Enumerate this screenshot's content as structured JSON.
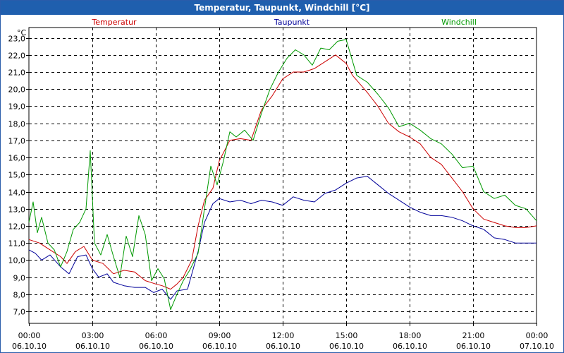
{
  "window": {
    "title": "Temperatur, Taupunkt, Windchill [°C]"
  },
  "chart_data": {
    "type": "line",
    "title": "Temperatur, Taupunkt, Windchill [°C]",
    "ylabel": "°C",
    "ylim": [
      6.3,
      23.6
    ],
    "xlim": [
      0,
      24
    ],
    "grid": true,
    "yticks": [
      "7,0",
      "8,0",
      "9,0",
      "10,0",
      "11,0",
      "12,0",
      "13,0",
      "14,0",
      "15,0",
      "16,0",
      "17,0",
      "18,0",
      "19,0",
      "20,0",
      "21,0",
      "22,0",
      "23,0"
    ],
    "xticks": [
      {
        "time": "00:00",
        "date": "06.10.10"
      },
      {
        "time": "03:00",
        "date": "06.10.10"
      },
      {
        "time": "06:00",
        "date": "06.10.10"
      },
      {
        "time": "09:00",
        "date": "06.10.10"
      },
      {
        "time": "12:00",
        "date": "06.10.10"
      },
      {
        "time": "15:00",
        "date": "06.10.10"
      },
      {
        "time": "18:00",
        "date": "06.10.10"
      },
      {
        "time": "21:00",
        "date": "06.10.10"
      },
      {
        "time": "00:00",
        "date": "07.10.10"
      }
    ],
    "series": [
      {
        "name": "Temperatur",
        "color": "#cc0000",
        "x": [
          0,
          0.5,
          1,
          1.5,
          1.8,
          2.2,
          2.6,
          3,
          3.5,
          4,
          4.5,
          5,
          5.5,
          6,
          6.3,
          6.7,
          7,
          7.3,
          7.7,
          8,
          8.3,
          8.7,
          9,
          9.5,
          10,
          10.5,
          11,
          11.5,
          12,
          12.5,
          13,
          13.5,
          14,
          14.5,
          15,
          15.3,
          16,
          16.5,
          17,
          17.5,
          18,
          18.5,
          19,
          19.5,
          20,
          20.5,
          21,
          21.5,
          22,
          22.5,
          23,
          23.5,
          24
        ],
        "values": [
          11.2,
          11.0,
          10.6,
          10.2,
          9.8,
          10.5,
          10.8,
          10.0,
          9.8,
          9.2,
          9.4,
          9.3,
          8.8,
          8.6,
          8.5,
          8.3,
          8.6,
          9.0,
          10.0,
          12.0,
          13.5,
          14.2,
          15.8,
          17.0,
          17.1,
          17.0,
          18.8,
          19.6,
          20.6,
          21.0,
          21.0,
          21.2,
          21.6,
          22.0,
          21.5,
          20.8,
          19.8,
          19.0,
          18.0,
          17.5,
          17.2,
          16.8,
          16.0,
          15.6,
          14.8,
          14.0,
          13.0,
          12.4,
          12.2,
          12.0,
          11.9,
          11.9,
          12.0
        ]
      },
      {
        "name": "Taupunkt",
        "color": "#000099",
        "x": [
          0,
          0.3,
          0.6,
          1,
          1.5,
          1.9,
          2.3,
          2.7,
          3,
          3.3,
          3.7,
          4,
          4.5,
          5,
          5.5,
          5.9,
          6.3,
          6.7,
          7,
          7.5,
          8,
          8.3,
          8.7,
          9,
          9.5,
          10,
          10.5,
          11,
          11.5,
          12,
          12.5,
          13,
          13.5,
          14,
          14.5,
          15,
          15.5,
          16,
          16.5,
          17,
          17.5,
          18,
          18.5,
          19,
          19.5,
          20,
          20.5,
          21,
          21.5,
          22,
          22.5,
          23,
          23.5,
          24
        ],
        "values": [
          10.6,
          10.4,
          10.0,
          10.3,
          9.6,
          9.2,
          10.2,
          10.3,
          9.5,
          9.0,
          9.2,
          8.7,
          8.5,
          8.4,
          8.4,
          8.1,
          8.3,
          7.7,
          8.2,
          8.3,
          10.5,
          12.2,
          13.3,
          13.6,
          13.4,
          13.5,
          13.3,
          13.5,
          13.4,
          13.2,
          13.7,
          13.5,
          13.4,
          13.9,
          14.1,
          14.5,
          14.8,
          14.9,
          14.4,
          13.9,
          13.5,
          13.1,
          12.8,
          12.6,
          12.6,
          12.5,
          12.3,
          12.0,
          11.8,
          11.3,
          11.2,
          11.0,
          11.0,
          11.0
        ]
      },
      {
        "name": "Windchill",
        "color": "#009900",
        "x": [
          0,
          0.2,
          0.4,
          0.6,
          0.9,
          1.2,
          1.5,
          1.8,
          2.1,
          2.4,
          2.7,
          2.9,
          3.1,
          3.4,
          3.7,
          4,
          4.3,
          4.6,
          4.9,
          5.2,
          5.5,
          5.8,
          6.1,
          6.4,
          6.7,
          7,
          7.3,
          7.6,
          8,
          8.3,
          8.6,
          8.9,
          9.2,
          9.5,
          9.8,
          10.2,
          10.6,
          11,
          11.4,
          11.8,
          12.2,
          12.6,
          13,
          13.4,
          13.8,
          14.2,
          14.6,
          15,
          15.5,
          16,
          16.5,
          17,
          17.5,
          18,
          18.5,
          19,
          19.5,
          20,
          20.5,
          21,
          21.5,
          22,
          22.5,
          23,
          23.5,
          24
        ],
        "values": [
          12.2,
          13.4,
          11.6,
          12.5,
          11.0,
          10.6,
          9.6,
          10.5,
          11.8,
          12.2,
          13.0,
          16.4,
          11.0,
          10.3,
          11.5,
          10.2,
          9.0,
          11.4,
          10.2,
          12.6,
          11.5,
          8.8,
          9.5,
          8.9,
          7.1,
          8.0,
          8.8,
          9.4,
          10.4,
          13.0,
          15.5,
          14.4,
          15.8,
          17.5,
          17.2,
          17.6,
          17.0,
          18.6,
          20.0,
          21.0,
          21.8,
          22.3,
          22.0,
          21.4,
          22.4,
          22.3,
          22.8,
          22.9,
          20.8,
          20.4,
          19.7,
          18.9,
          17.8,
          18.0,
          17.6,
          17.1,
          16.8,
          16.2,
          15.4,
          15.5,
          14.0,
          13.6,
          13.8,
          13.2,
          13.0,
          12.3
        ]
      }
    ]
  }
}
